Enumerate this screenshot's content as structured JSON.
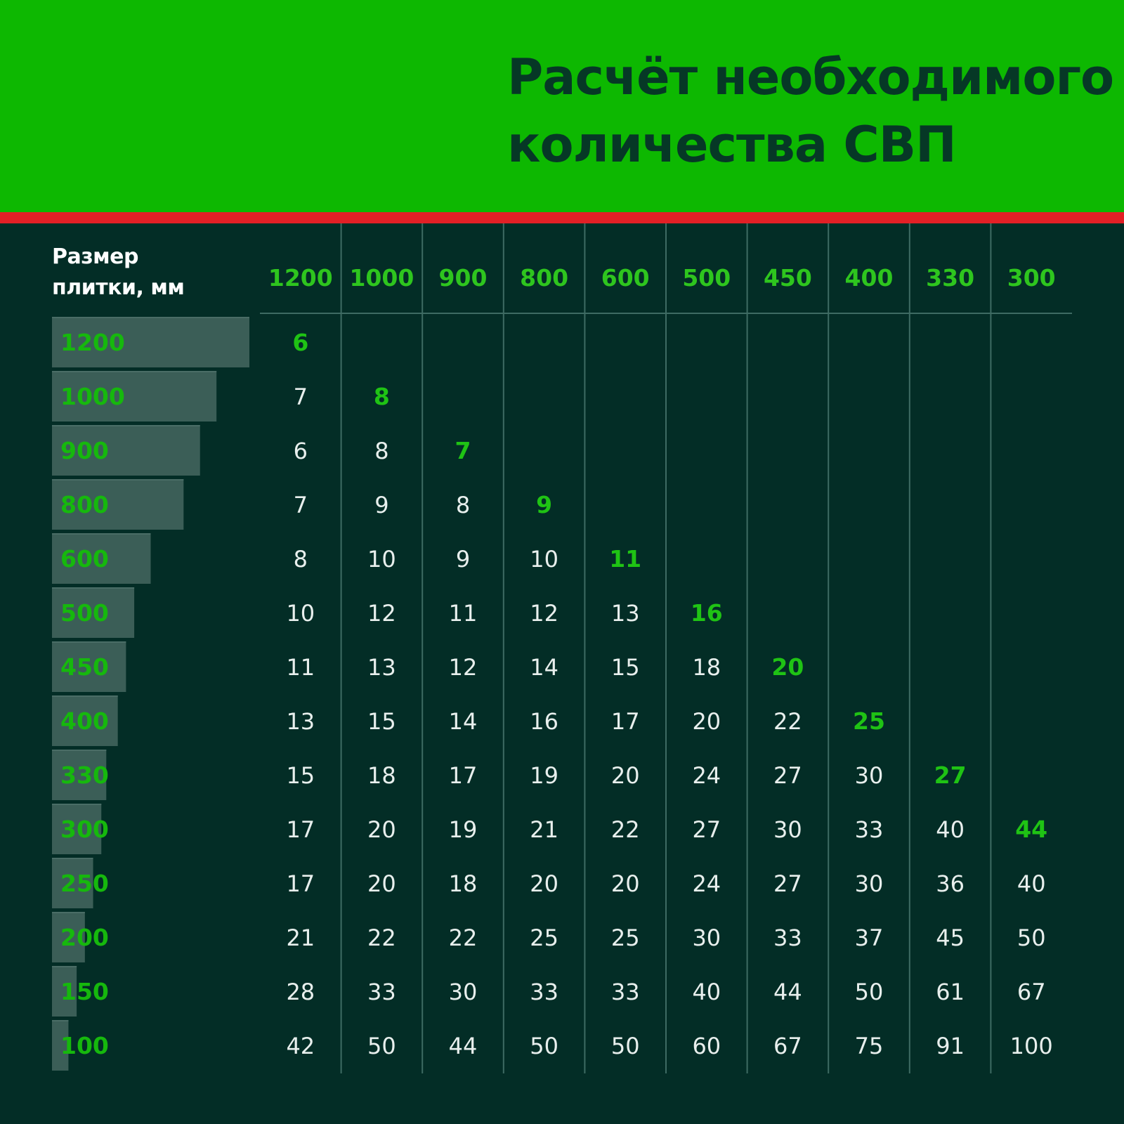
{
  "header": {
    "title_line1": "Расчёт необходимого",
    "title_line2": "количества СВП"
  },
  "table": {
    "corner_label": "Размер\nплитки, мм"
  },
  "colors": {
    "header_bg": "#0db801",
    "stripe": "#e32026",
    "background": "#032d26",
    "accent_green": "#1fc314",
    "cell_text": "#e8efed"
  },
  "chart_data": {
    "type": "table",
    "title": "Расчёт необходимого количества СВП",
    "row_header": "Размер плитки, мм",
    "columns": [
      "1200",
      "1000",
      "900",
      "800",
      "600",
      "500",
      "450",
      "400",
      "330",
      "300"
    ],
    "rows": [
      {
        "label": "1200",
        "values": [
          6,
          null,
          null,
          null,
          null,
          null,
          null,
          null,
          null,
          null
        ]
      },
      {
        "label": "1000",
        "values": [
          7,
          8,
          null,
          null,
          null,
          null,
          null,
          null,
          null,
          null
        ]
      },
      {
        "label": "900",
        "values": [
          6,
          8,
          7,
          null,
          null,
          null,
          null,
          null,
          null,
          null
        ]
      },
      {
        "label": "800",
        "values": [
          7,
          9,
          8,
          9,
          null,
          null,
          null,
          null,
          null,
          null
        ]
      },
      {
        "label": "600",
        "values": [
          8,
          10,
          9,
          10,
          11,
          null,
          null,
          null,
          null,
          null
        ]
      },
      {
        "label": "500",
        "values": [
          10,
          12,
          11,
          12,
          13,
          16,
          null,
          null,
          null,
          null
        ]
      },
      {
        "label": "450",
        "values": [
          11,
          13,
          12,
          14,
          15,
          18,
          20,
          null,
          null,
          null
        ]
      },
      {
        "label": "400",
        "values": [
          13,
          15,
          14,
          16,
          17,
          20,
          22,
          25,
          null,
          null
        ]
      },
      {
        "label": "330",
        "values": [
          15,
          18,
          17,
          19,
          20,
          24,
          27,
          30,
          27,
          null
        ]
      },
      {
        "label": "300",
        "values": [
          17,
          20,
          19,
          21,
          22,
          27,
          30,
          33,
          40,
          44
        ]
      },
      {
        "label": "250",
        "values": [
          17,
          20,
          18,
          20,
          20,
          24,
          27,
          30,
          36,
          40
        ]
      },
      {
        "label": "200",
        "values": [
          21,
          22,
          22,
          25,
          25,
          30,
          33,
          37,
          45,
          50
        ]
      },
      {
        "label": "150",
        "values": [
          28,
          33,
          30,
          33,
          33,
          40,
          44,
          50,
          61,
          67
        ]
      },
      {
        "label": "100",
        "values": [
          42,
          50,
          44,
          50,
          50,
          60,
          67,
          75,
          91,
          100
        ]
      }
    ],
    "highlight": "diagonal"
  }
}
